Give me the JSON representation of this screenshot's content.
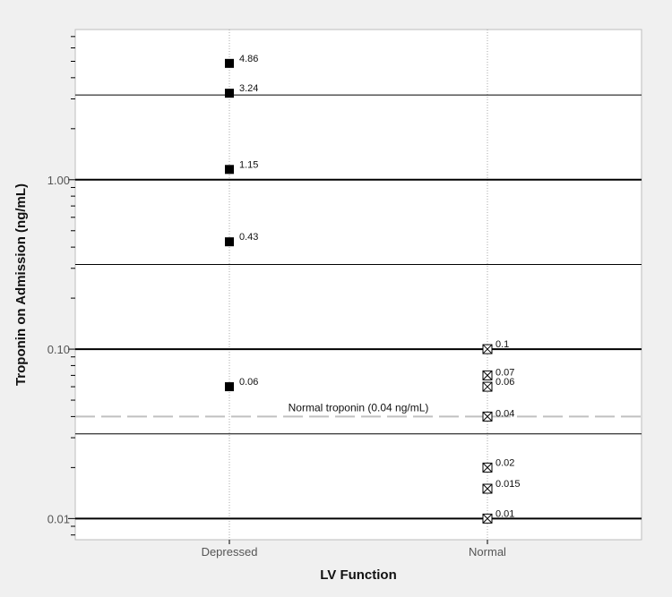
{
  "chart_data": {
    "type": "scatter",
    "y_scale": "log",
    "xlabel": "LV Function",
    "ylabel": "Troponin on Admission (ng/mL)",
    "ylim": [
      0.0075,
      7.7
    ],
    "categories": [
      "Depressed",
      "Normal"
    ],
    "y_ticks": [
      {
        "value": 1.0,
        "label": "1.00"
      },
      {
        "value": 0.1,
        "label": "0.10"
      },
      {
        "value": 0.01,
        "label": "0.01"
      }
    ],
    "grid_lines_major": [
      1.0,
      0.1,
      0.01
    ],
    "grid_lines_minor": [
      3.162,
      0.3162,
      0.03162
    ],
    "series": [
      {
        "category": "Depressed",
        "marker": "filled-square",
        "points": [
          {
            "value": 4.86,
            "label": "4.86"
          },
          {
            "value": 3.24,
            "label": "3.24"
          },
          {
            "value": 1.15,
            "label": "1.15"
          },
          {
            "value": 0.43,
            "label": "0.43"
          },
          {
            "value": 0.06,
            "label": "0.06"
          }
        ]
      },
      {
        "category": "Normal",
        "marker": "crossed-square",
        "points": [
          {
            "value": 0.1,
            "label": "0.1"
          },
          {
            "value": 0.07,
            "label": "0.07"
          },
          {
            "value": 0.06,
            "label": "0.06"
          },
          {
            "value": 0.04,
            "label": "0.04"
          },
          {
            "value": 0.02,
            "label": "0.02"
          },
          {
            "value": 0.015,
            "label": "0.015"
          },
          {
            "value": 0.01,
            "label": "0.01"
          }
        ]
      }
    ],
    "reference_line": {
      "value": 0.04,
      "label": "Normal troponin (0.04 ng/mL)"
    },
    "colors": {
      "background": "#f0f0f0",
      "plot_background": "#ffffff",
      "reference_line": "#c0c0c0",
      "marker": "#000000"
    }
  }
}
